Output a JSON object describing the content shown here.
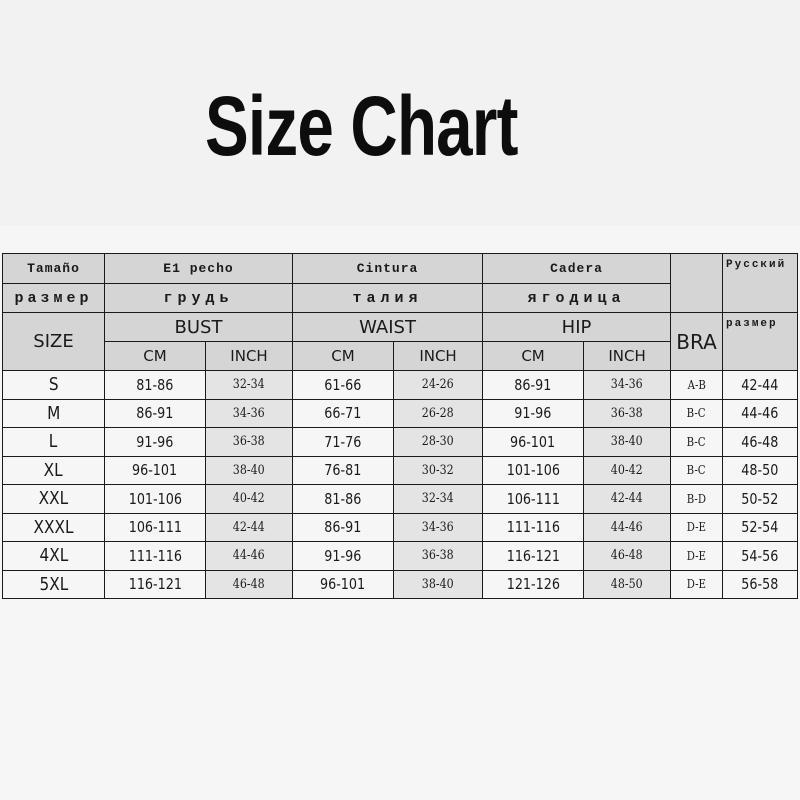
{
  "title": "Size Chart",
  "header": {
    "row1": {
      "size": "Tamaño",
      "bust": "E1 pecho",
      "waist": "Cintura",
      "hip": "Cadera",
      "ru": "Русский"
    },
    "row2": {
      "size": "размер",
      "bust": "грудь",
      "waist": "талия",
      "hip": "ягодица"
    },
    "row3": {
      "size": "SIZE",
      "bust": "BUST",
      "waist": "WAIST",
      "hip": "HIP",
      "bra": "BRA",
      "ru": "размер"
    },
    "row4": {
      "cm": "CM",
      "inch": "INCH"
    }
  },
  "rows": [
    {
      "size": "S",
      "bust_cm": "81-86",
      "bust_in": "32-34",
      "waist_cm": "61-66",
      "waist_in": "24-26",
      "hip_cm": "86-91",
      "hip_in": "34-36",
      "bra": "A-B",
      "ru": "42-44"
    },
    {
      "size": "M",
      "bust_cm": "86-91",
      "bust_in": "34-36",
      "waist_cm": "66-71",
      "waist_in": "26-28",
      "hip_cm": "91-96",
      "hip_in": "36-38",
      "bra": "B-C",
      "ru": "44-46"
    },
    {
      "size": "L",
      "bust_cm": "91-96",
      "bust_in": "36-38",
      "waist_cm": "71-76",
      "waist_in": "28-30",
      "hip_cm": "96-101",
      "hip_in": "38-40",
      "bra": "B-C",
      "ru": "46-48"
    },
    {
      "size": "XL",
      "bust_cm": "96-101",
      "bust_in": "38-40",
      "waist_cm": "76-81",
      "waist_in": "30-32",
      "hip_cm": "101-106",
      "hip_in": "40-42",
      "bra": "B-C",
      "ru": "48-50"
    },
    {
      "size": "XXL",
      "bust_cm": "101-106",
      "bust_in": "40-42",
      "waist_cm": "81-86",
      "waist_in": "32-34",
      "hip_cm": "106-111",
      "hip_in": "42-44",
      "bra": "B-D",
      "ru": "50-52"
    },
    {
      "size": "XXXL",
      "bust_cm": "106-111",
      "bust_in": "42-44",
      "waist_cm": "86-91",
      "waist_in": "34-36",
      "hip_cm": "111-116",
      "hip_in": "44-46",
      "bra": "D-E",
      "ru": "52-54"
    },
    {
      "size": "4XL",
      "bust_cm": "111-116",
      "bust_in": "44-46",
      "waist_cm": "91-96",
      "waist_in": "36-38",
      "hip_cm": "116-121",
      "hip_in": "46-48",
      "bra": "D-E",
      "ru": "54-56"
    },
    {
      "size": "5XL",
      "bust_cm": "116-121",
      "bust_in": "46-48",
      "waist_cm": "96-101",
      "waist_in": "38-40",
      "hip_cm": "121-126",
      "hip_in": "48-50",
      "bra": "D-E",
      "ru": "56-58"
    }
  ]
}
